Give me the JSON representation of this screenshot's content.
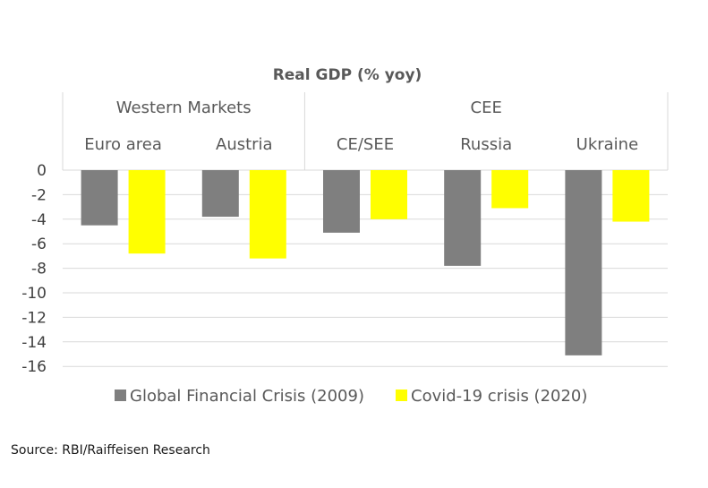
{
  "chart_data": {
    "type": "bar",
    "title": "Real GDP (% yoy)",
    "groups": [
      {
        "label": "Western Markets",
        "categories": [
          "Euro area",
          "Austria"
        ]
      },
      {
        "label": "CEE",
        "categories": [
          "CE/SEE",
          "Russia",
          "Ukraine"
        ]
      }
    ],
    "categories": [
      "Euro area",
      "Austria",
      "CE/SEE",
      "Russia",
      "Ukraine"
    ],
    "series": [
      {
        "name": "Global Financial Crisis (2009)",
        "color": "#7f7f7f",
        "values": [
          -4.5,
          -3.8,
          -5.1,
          -7.8,
          -15.1
        ]
      },
      {
        "name": "Covid-19 crisis (2020)",
        "color": "#ffff00",
        "values": [
          -6.8,
          -7.2,
          -4.0,
          -3.1,
          -4.2
        ]
      }
    ],
    "ylim": [
      -16,
      0
    ],
    "yticks": [
      0,
      -2,
      -4,
      -6,
      -8,
      -10,
      -12,
      -14,
      -16
    ],
    "grid": true,
    "legend_position": "bottom"
  },
  "source": "Source: RBI/Raiffeisen Research"
}
